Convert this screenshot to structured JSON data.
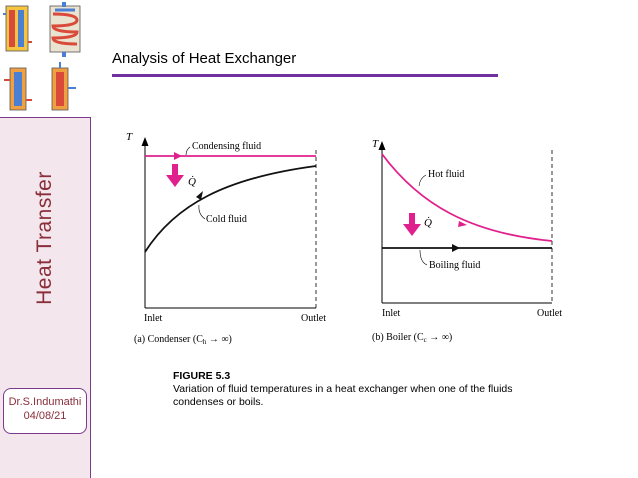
{
  "slide": {
    "title": "Analysis of Heat Exchanger",
    "side_title": "Heat Transfer",
    "author": "Dr.S.Indumathi",
    "date": "04/08/21"
  },
  "figure": {
    "number": "FIGURE 5.3",
    "caption": "Variation of fluid temperatures in a heat exchanger when one of the fluids condenses or boils."
  },
  "panel_a": {
    "axis_y": "T",
    "inlet": "Inlet",
    "outlet": "Outlet",
    "hot_label": "Condensing fluid",
    "cold_label": "Cold fluid",
    "q_label": "Q̇",
    "caption_part1": "(a) Condenser (C",
    "caption_sub": "h",
    "caption_part2": " → ∞)"
  },
  "panel_b": {
    "axis_y": "T",
    "inlet": "Inlet",
    "outlet": "Outlet",
    "hot_label": "Hot fluid",
    "cold_label": "Boiling fluid",
    "q_label": "Q̇",
    "caption_part1": "(b) Boiler (C",
    "caption_sub": "c",
    "caption_part2": " → ∞)"
  },
  "colors": {
    "hot": "#e0208c",
    "cold": "#111111",
    "accent": "#7030a0",
    "sidebar_text": "#8b2e3b"
  }
}
